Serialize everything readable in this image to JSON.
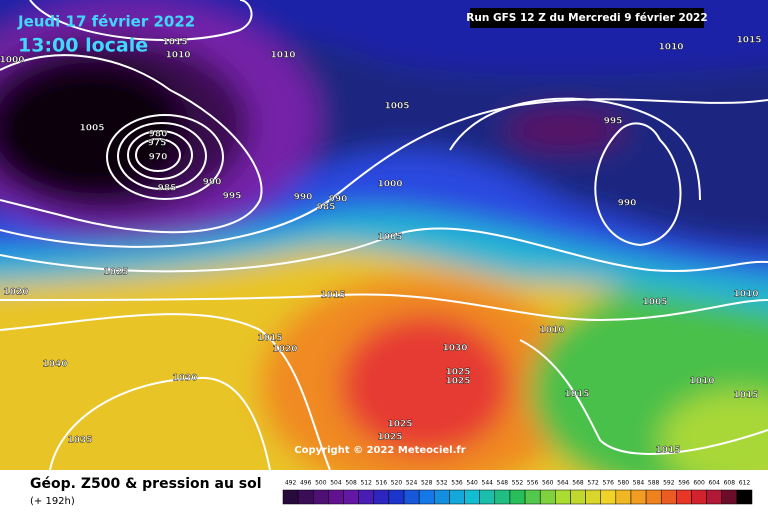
{
  "header": {
    "date": "Jeudi 17 février 2022",
    "time": "13:00 locale",
    "run": "Run GFS 12 Z du Mercredi 9 février 2022"
  },
  "isobar_labels": [
    1015,
    1010,
    1000,
    1010,
    1005,
    980,
    975,
    970,
    985,
    990,
    995,
    990,
    985,
    990,
    1005,
    1000,
    1005,
    1015,
    1025,
    1020,
    1015,
    1020,
    1040,
    1030,
    1035,
    1030,
    1025,
    1025,
    1025,
    1025,
    995,
    990,
    1010,
    1015,
    1005,
    1010,
    1010,
    1015,
    1010,
    1015,
    1015
  ],
  "copyright": "Copyright © 2022 Meteociel.fr",
  "legend": {
    "title": "Géop. Z500 & pression au sol",
    "subtitle": "(+ 192h)",
    "scale": [
      492,
      496,
      500,
      504,
      508,
      512,
      516,
      520,
      524,
      528,
      532,
      536,
      540,
      544,
      548,
      552,
      556,
      560,
      564,
      568,
      572,
      576,
      580,
      584,
      588,
      592,
      596,
      600,
      604,
      608,
      612
    ]
  }
}
